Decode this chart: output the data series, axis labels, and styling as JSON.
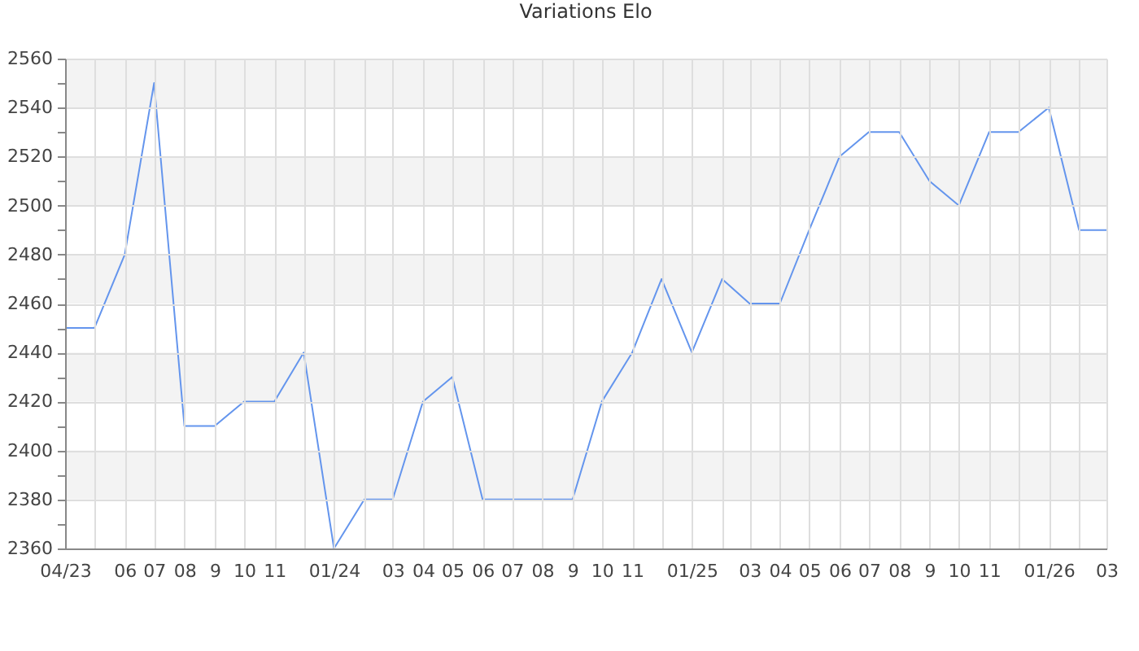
{
  "chart_data": {
    "type": "line",
    "title": "Variations Elo",
    "x": [
      "2023-04",
      "2023-05",
      "2023-06",
      "2023-07",
      "2023-08",
      "2023-09",
      "2023-10",
      "2023-11",
      "2023-12",
      "2024-01",
      "2024-02",
      "2024-03",
      "2024-04",
      "2024-05",
      "2024-06",
      "2024-07",
      "2024-08",
      "2024-09",
      "2024-10",
      "2024-11",
      "2024-12",
      "2025-01",
      "2025-02",
      "2025-03",
      "2025-04",
      "2025-05",
      "2025-06",
      "2025-07",
      "2025-08",
      "2025-09",
      "2025-10",
      "2025-11",
      "2025-12",
      "2026-01",
      "2026-02",
      "2026-03"
    ],
    "series": [
      {
        "color": "#6495ed",
        "values": [
          2450,
          2450,
          2480,
          2550,
          2410,
          2410,
          2420,
          2420,
          2440,
          2360,
          2380,
          2380,
          2420,
          2430,
          2380,
          2380,
          2380,
          2380,
          2420,
          2440,
          2470,
          2440,
          2470,
          2460,
          2460,
          2490,
          2520,
          2530,
          2530,
          2510,
          2500,
          2530,
          2530,
          2540,
          2490,
          2490
        ]
      }
    ],
    "xlim": [
      "2023-04",
      "2026-03"
    ],
    "xticks": [
      {
        "value": "2023-04",
        "label": "04/23"
      },
      {
        "value": "2023-05",
        "label": null
      },
      {
        "value": "2023-06",
        "label": "06"
      },
      {
        "value": "2023-07",
        "label": "07"
      },
      {
        "value": "2023-08",
        "label": "08"
      },
      {
        "value": "2023-09",
        "label": "9"
      },
      {
        "value": "2023-10",
        "label": "10"
      },
      {
        "value": "2023-11",
        "label": "11"
      },
      {
        "value": "2023-12",
        "label": null
      },
      {
        "value": "2024-01",
        "label": "01/24"
      },
      {
        "value": "2024-02",
        "label": null
      },
      {
        "value": "2024-03",
        "label": "03"
      },
      {
        "value": "2024-04",
        "label": "04"
      },
      {
        "value": "2024-05",
        "label": "05"
      },
      {
        "value": "2024-06",
        "label": "06"
      },
      {
        "value": "2024-07",
        "label": "07"
      },
      {
        "value": "2024-08",
        "label": "08"
      },
      {
        "value": "2024-09",
        "label": "9"
      },
      {
        "value": "2024-10",
        "label": "10"
      },
      {
        "value": "2024-11",
        "label": "11"
      },
      {
        "value": "2024-12",
        "label": null
      },
      {
        "value": "2025-01",
        "label": "01/25"
      },
      {
        "value": "2025-02",
        "label": null
      },
      {
        "value": "2025-03",
        "label": "03"
      },
      {
        "value": "2025-04",
        "label": "04"
      },
      {
        "value": "2025-05",
        "label": "05"
      },
      {
        "value": "2025-06",
        "label": "06"
      },
      {
        "value": "2025-07",
        "label": "07"
      },
      {
        "value": "2025-08",
        "label": "08"
      },
      {
        "value": "2025-09",
        "label": "9"
      },
      {
        "value": "2025-10",
        "label": "10"
      },
      {
        "value": "2025-11",
        "label": "11"
      },
      {
        "value": "2025-12",
        "label": null
      },
      {
        "value": "2026-01",
        "label": "01/26"
      },
      {
        "value": "2026-02",
        "label": null
      },
      {
        "value": "2026-03",
        "label": "03"
      }
    ],
    "ylim": [
      2360,
      2560
    ],
    "yticks": [
      2360,
      {
        "value": 2370,
        "label": null
      },
      2380,
      {
        "value": 2390,
        "label": null
      },
      2400,
      {
        "value": 2410,
        "label": null
      },
      2420,
      {
        "value": 2430,
        "label": null
      },
      2440,
      {
        "value": 2450,
        "label": null
      },
      2460,
      {
        "value": 2470,
        "label": null
      },
      2480,
      {
        "value": 2490,
        "label": null
      },
      2500,
      {
        "value": 2510,
        "label": null
      },
      2520,
      {
        "value": 2530,
        "label": null
      },
      2540,
      {
        "value": 2550,
        "label": null
      },
      2560
    ],
    "bands": [
      {
        "axis": "y",
        "from": 2380,
        "to": 2400,
        "color": "#f3f3f3"
      },
      {
        "axis": "y",
        "from": 2420,
        "to": 2440,
        "color": "#f3f3f3"
      },
      {
        "axis": "y",
        "from": 2460,
        "to": 2480,
        "color": "#f3f3f3"
      },
      {
        "axis": "y",
        "from": 2500,
        "to": 2520,
        "color": "#f3f3f3"
      },
      {
        "axis": "y",
        "from": 2540,
        "to": 2560,
        "color": "#f3f3f3"
      }
    ],
    "grid": true
  }
}
